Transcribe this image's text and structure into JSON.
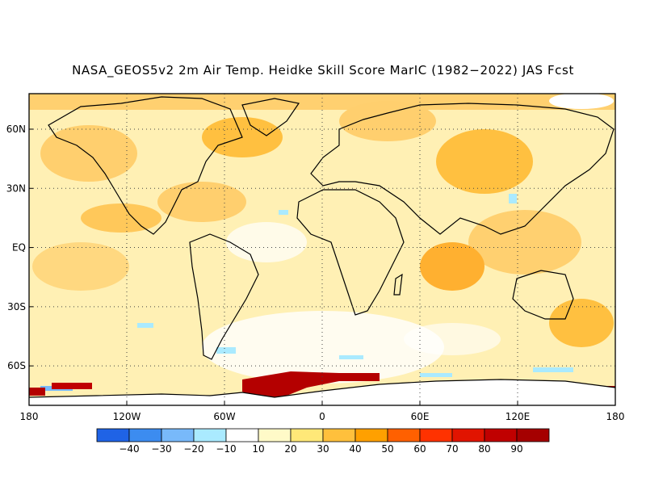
{
  "title": "NASA_GEOS5v2 2m Air Temp. Heidke Skill Score MarIC (1982−2022) JAS Fcst",
  "map": {
    "lat_labels": [
      "60N",
      "30N",
      "EQ",
      "30S",
      "60S"
    ],
    "lat_values": [
      60,
      30,
      0,
      -30,
      -60
    ],
    "lon_labels": [
      "180",
      "120W",
      "60W",
      "0",
      "60E",
      "120E",
      "180"
    ],
    "lon_values": [
      -180,
      -120,
      -60,
      0,
      60,
      120,
      180
    ],
    "lon_range": [
      -180,
      180
    ],
    "lat_range": [
      -80,
      78
    ]
  },
  "colorbar": {
    "labels": [
      "−40",
      "−30",
      "−20",
      "−10",
      "10",
      "20",
      "30",
      "40",
      "50",
      "60",
      "70",
      "80",
      "90"
    ],
    "colors": [
      "#1f63e6",
      "#3c8cf0",
      "#78b9fa",
      "#aaeaff",
      "#ffffff",
      "#fffac8",
      "#ffe878",
      "#ffc03c",
      "#ffa000",
      "#ff6000",
      "#ff3200",
      "#e11400",
      "#c00000",
      "#a50000"
    ]
  }
}
